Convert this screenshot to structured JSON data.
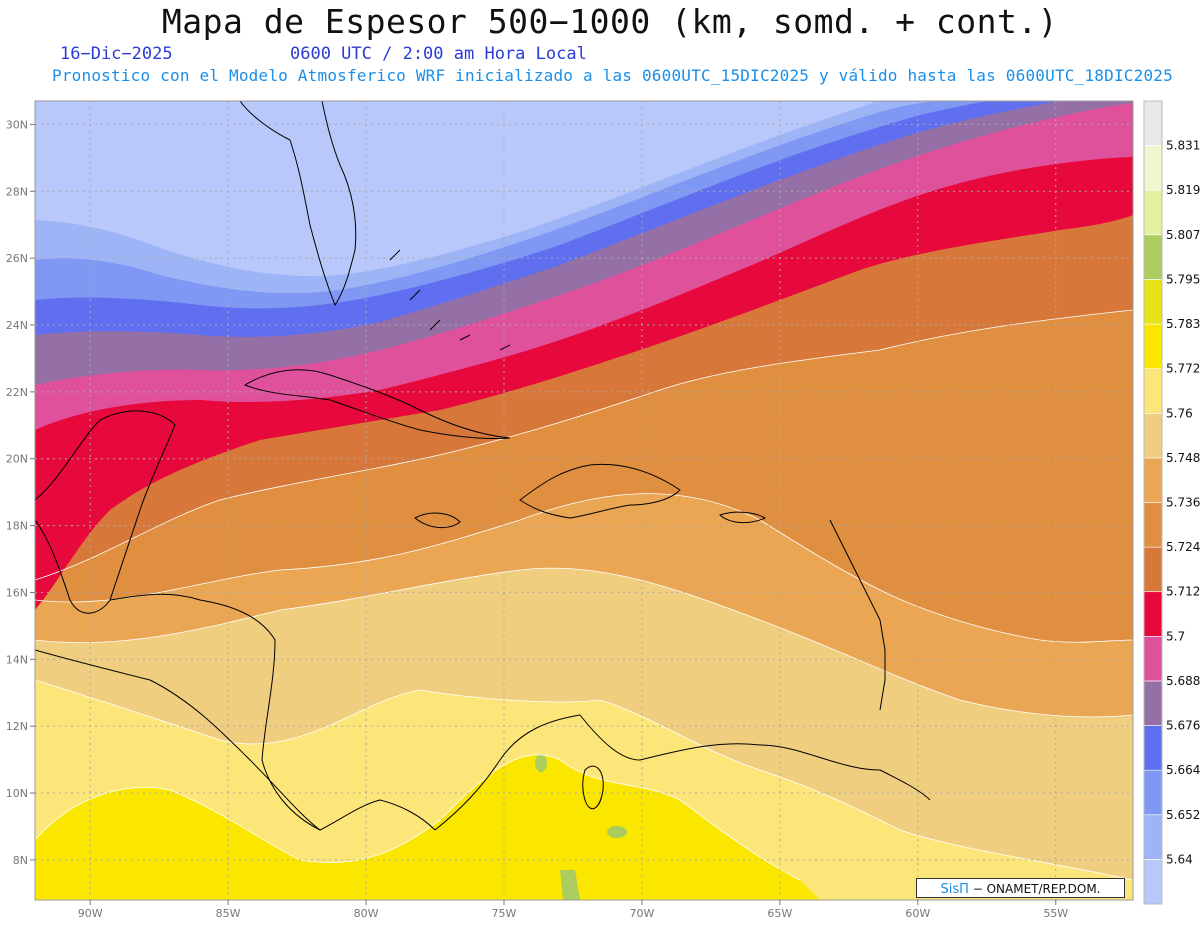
{
  "title": "Mapa de Espesor 500−1000 (km, somd. + cont.)",
  "date_label": "16−Dic−2025",
  "time_label": "0600 UTC / 2:00 am Hora Local",
  "forecast_info": "Pronostico con el Modelo Atmosferico WRF inicializado a las 0600UTC_15DIC2025 y válido hasta las  0600UTC_18DIC2025",
  "credit": {
    "brand": "SisΠ",
    "text": "− ONAMET/REP.DOM."
  },
  "map": {
    "lon_range": [
      -92,
      -52.2
    ],
    "lat_range": [
      6.8,
      30.7
    ],
    "lat_ticks": [
      {
        "lat": 30,
        "label": "30N"
      },
      {
        "lat": 28,
        "label": "28N"
      },
      {
        "lat": 26,
        "label": "26N"
      },
      {
        "lat": 24,
        "label": "24N"
      },
      {
        "lat": 22,
        "label": "22N"
      },
      {
        "lat": 20,
        "label": "20N"
      },
      {
        "lat": 18,
        "label": "18N"
      },
      {
        "lat": 16,
        "label": "16N"
      },
      {
        "lat": 14,
        "label": "14N"
      },
      {
        "lat": 12,
        "label": "12N"
      },
      {
        "lat": 10,
        "label": "10N"
      },
      {
        "lat": 8,
        "label": "8N"
      }
    ],
    "lon_ticks": [
      {
        "lon": -90,
        "label": "90W"
      },
      {
        "lon": -85,
        "label": "85W"
      },
      {
        "lon": -80,
        "label": "80W"
      },
      {
        "lon": -75,
        "label": "75W"
      },
      {
        "lon": -70,
        "label": "70W"
      },
      {
        "lon": -65,
        "label": "65W"
      },
      {
        "lon": -60,
        "label": "60W"
      },
      {
        "lon": -55,
        "label": "55W"
      }
    ]
  },
  "colorbar": {
    "levels": [
      {
        "label": "",
        "color": "#b9c8fb"
      },
      {
        "label": "5.64",
        "color": "#9db4f7"
      },
      {
        "label": "5.652",
        "color": "#7f98f4"
      },
      {
        "label": "5.664",
        "color": "#5f6ff0"
      },
      {
        "label": "5.676",
        "color": "#9470a6"
      },
      {
        "label": "5.688",
        "color": "#e0519c"
      },
      {
        "label": "5.7",
        "color": "#e8093c"
      },
      {
        "label": "5.712",
        "color": "#d7783a"
      },
      {
        "label": "5.724",
        "color": "#e08f40"
      },
      {
        "label": "5.736",
        "color": "#eaa653"
      },
      {
        "label": "5.748",
        "color": "#f0ce7f"
      },
      {
        "label": "5.76",
        "color": "#fce67a"
      },
      {
        "label": "5.772",
        "color": "#fbe600"
      },
      {
        "label": "5.783",
        "color": "#e6e418"
      },
      {
        "label": "5.795",
        "color": "#abcc5e"
      },
      {
        "label": "5.807",
        "color": "#e2f0a0"
      },
      {
        "label": "5.819",
        "color": "#f1f6cf"
      },
      {
        "label": "5.831",
        "color": "#e8e8e8"
      }
    ]
  }
}
